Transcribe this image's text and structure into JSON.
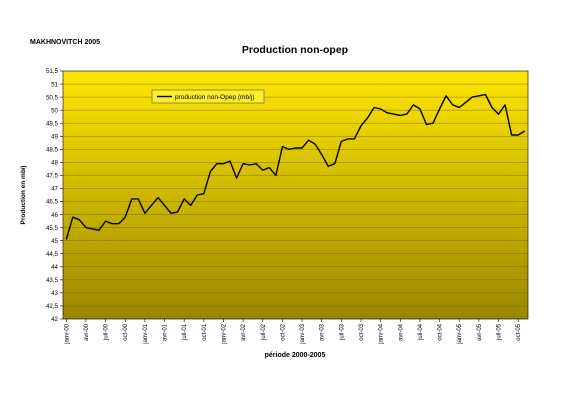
{
  "header": {
    "author": "MAKHNOVITCH 2005"
  },
  "chart_data": {
    "type": "line",
    "title": "Production non-opep",
    "xlabel": "période 2000-2005",
    "ylabel": "Production en mb/j",
    "ylim": [
      42,
      51.5
    ],
    "yticks": [
      "42",
      "42,5",
      "43",
      "43,5",
      "44",
      "44,5",
      "45",
      "45,5",
      "46",
      "46,5",
      "47",
      "47,5",
      "48",
      "48,5",
      "49",
      "49,5",
      "50",
      "50,5",
      "51",
      "51,5"
    ],
    "grid": true,
    "legend": "top-left",
    "background_gradient": [
      "#ffe600",
      "#9a8700"
    ],
    "line_color": "#000000",
    "x": [
      "janv-00",
      "févr-00",
      "mars-00",
      "avr-00",
      "mai-00",
      "juin-00",
      "juil-00",
      "août-00",
      "sept-00",
      "oct-00",
      "nov-00",
      "déc-00",
      "janv-01",
      "févr-01",
      "mars-01",
      "avr-01",
      "mai-01",
      "juin-01",
      "juil-01",
      "août-01",
      "sept-01",
      "oct-01",
      "nov-01",
      "déc-01",
      "janv-02",
      "févr-02",
      "mars-02",
      "avr-02",
      "mai-02",
      "juin-02",
      "juil-02",
      "août-02",
      "sept-02",
      "oct-02",
      "nov-02",
      "déc-02",
      "janv-03",
      "févr-03",
      "mars-03",
      "avr-03",
      "mai-03",
      "juin-03",
      "juil-03",
      "août-03",
      "sept-03",
      "oct-03",
      "nov-03",
      "déc-03",
      "janv-04",
      "févr-04",
      "mars-04",
      "avr-04",
      "mai-04",
      "juin-04",
      "juil-04",
      "août-04",
      "sept-04",
      "oct-04",
      "nov-04",
      "déc-04",
      "janv-05",
      "févr-05",
      "mars-05",
      "avr-05",
      "mai-05",
      "juin-05",
      "juil-05",
      "août-05",
      "sept-05",
      "oct-05",
      "nov-05"
    ],
    "xtick_labels": [
      "janv-00",
      "avr-00",
      "juil-00",
      "oct-00",
      "janv-01",
      "avr-01",
      "juil-01",
      "oct-01",
      "janv-02",
      "avr-02",
      "juil-02",
      "oct-02",
      "janv-03",
      "avr-03",
      "juil-03",
      "oct-03",
      "janv-04",
      "avr-04",
      "juil-04",
      "oct-04",
      "janv-05",
      "avr-05",
      "juil-05",
      "oct-05"
    ],
    "series": [
      {
        "name": "production non-Opep (mb/j)",
        "values": [
          45.05,
          45.9,
          45.8,
          45.5,
          45.45,
          45.4,
          45.75,
          45.65,
          45.65,
          45.9,
          46.6,
          46.6,
          46.05,
          46.35,
          46.65,
          46.35,
          46.05,
          46.1,
          46.6,
          46.35,
          46.75,
          46.8,
          47.65,
          47.95,
          47.95,
          48.05,
          47.4,
          47.95,
          47.9,
          47.95,
          47.7,
          47.8,
          47.5,
          48.6,
          48.5,
          48.55,
          48.55,
          48.85,
          48.7,
          48.3,
          47.85,
          47.95,
          48.8,
          48.9,
          48.9,
          49.4,
          49.7,
          50.1,
          50.05,
          49.9,
          49.85,
          49.8,
          49.85,
          50.2,
          50.05,
          49.45,
          49.5,
          50.05,
          50.55,
          50.2,
          50.1,
          50.3,
          50.5,
          50.55,
          50.6,
          50.1,
          49.85,
          50.2,
          49.05,
          49.05,
          49.2
        ]
      }
    ]
  }
}
